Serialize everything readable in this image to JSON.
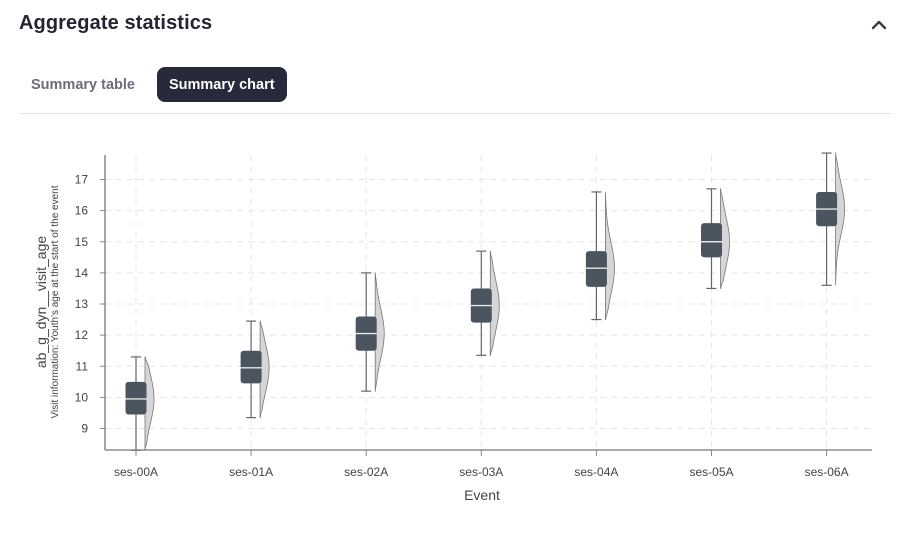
{
  "section": {
    "title": "Aggregate statistics",
    "collapse_icon": "chevron-up-icon"
  },
  "tabs": [
    {
      "label": "Summary table",
      "active": false
    },
    {
      "label": "Summary chart",
      "active": true
    }
  ],
  "chart_data": {
    "type": "box-violin",
    "xlabel": "Event",
    "ylabel": "ab_g_dyn__visit_age",
    "ylabel_sub": "Visit information: Youth's age at the start of the event",
    "categories": [
      "ses-00A",
      "ses-01A",
      "ses-02A",
      "ses-03A",
      "ses-04A",
      "ses-05A",
      "ses-06A"
    ],
    "yticks": [
      9,
      10,
      11,
      12,
      13,
      14,
      15,
      16,
      17
    ],
    "ylim": [
      8.3,
      17.85
    ],
    "grid": true,
    "box_color": "#4a5560",
    "violin_color": "#d6d6d6",
    "boxes": [
      {
        "min": 8.3,
        "q1": 9.45,
        "median": 9.95,
        "q3": 10.5,
        "max": 11.3
      },
      {
        "min": 9.35,
        "q1": 10.45,
        "median": 10.95,
        "q3": 11.5,
        "max": 12.45
      },
      {
        "min": 10.2,
        "q1": 11.5,
        "median": 12.05,
        "q3": 12.6,
        "max": 14.0
      },
      {
        "min": 11.35,
        "q1": 12.4,
        "median": 12.95,
        "q3": 13.5,
        "max": 14.7
      },
      {
        "min": 12.5,
        "q1": 13.55,
        "median": 14.15,
        "q3": 14.7,
        "max": 16.6
      },
      {
        "min": 13.5,
        "q1": 14.5,
        "median": 15.0,
        "q3": 15.6,
        "max": 16.7
      },
      {
        "min": 13.6,
        "q1": 15.5,
        "median": 16.05,
        "q3": 16.6,
        "max": 17.85
      }
    ]
  }
}
